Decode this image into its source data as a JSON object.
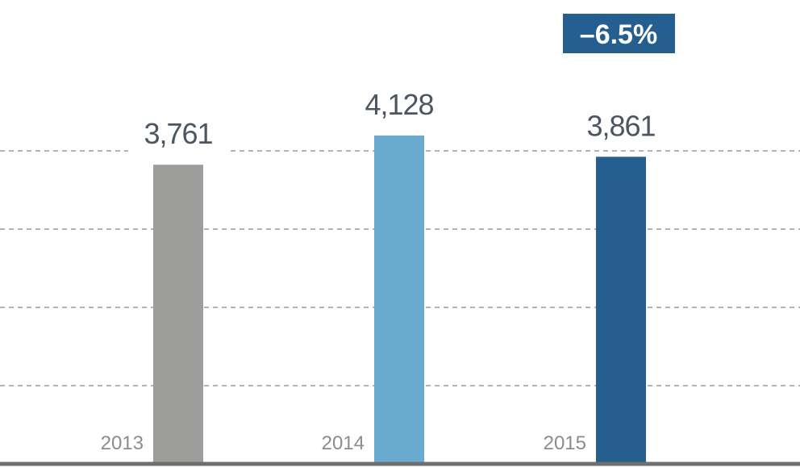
{
  "chart_data": {
    "type": "bar",
    "categories": [
      "2013",
      "2014",
      "2015"
    ],
    "values": [
      3761,
      4128,
      3861
    ],
    "value_labels": [
      "3,761",
      "4,128",
      "3,861"
    ],
    "bar_colors": [
      "#9d9d9b",
      "#6aaad0",
      "#255f8f"
    ],
    "ylim": [
      0,
      4800
    ],
    "grid": true,
    "grid_style": "dashed",
    "title": "",
    "xlabel": "",
    "ylabel": "",
    "annotation": {
      "text": "–6.5%",
      "background": "#255f8f",
      "color": "#ffffff"
    }
  }
}
